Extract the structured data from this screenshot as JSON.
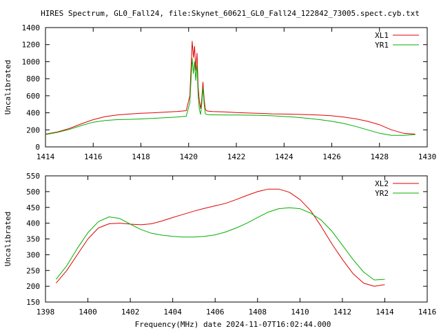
{
  "figure_title": "HIRES Spectrum, GL0_Fall24, file:Skynet_60621_GL0_Fall24_122842_73005.spect.cyb.txt",
  "footer_label": "Frequency(MHz) date 2024-11-07T16:02:44.000",
  "colors": {
    "red": "#e00000",
    "green": "#00b000"
  },
  "chart_data": [
    {
      "type": "line",
      "title": "HIRES Spectrum, GL0_Fall24, file:Skynet_60621_GL0_Fall24_122842_73005.spect.cyb.txt",
      "xlabel": "",
      "ylabel": "Uncalibrated",
      "xlim": [
        1414,
        1430
      ],
      "ylim": [
        0,
        1400
      ],
      "xticks": [
        1414,
        1416,
        1418,
        1420,
        1422,
        1424,
        1426,
        1428,
        1430
      ],
      "yticks": [
        0,
        200,
        400,
        600,
        800,
        1000,
        1200,
        1400
      ],
      "grid": false,
      "legend": "top-right",
      "series": [
        {
          "name": "XL1",
          "color": "#e00000",
          "x": [
            1414.0,
            1414.5,
            1415.0,
            1415.5,
            1416.0,
            1416.5,
            1417.0,
            1417.5,
            1418.0,
            1418.5,
            1419.0,
            1419.5,
            1419.9,
            1420.05,
            1420.15,
            1420.2,
            1420.25,
            1420.3,
            1420.35,
            1420.4,
            1420.45,
            1420.5,
            1420.55,
            1420.6,
            1420.65,
            1420.7,
            1420.75,
            1420.8,
            1421.0,
            1421.5,
            1422.0,
            1422.5,
            1423.0,
            1423.5,
            1424.0,
            1424.5,
            1425.0,
            1425.5,
            1426.0,
            1426.5,
            1427.0,
            1427.5,
            1428.0,
            1428.5,
            1429.0,
            1429.5
          ],
          "y": [
            150,
            175,
            215,
            270,
            320,
            355,
            375,
            385,
            395,
            400,
            408,
            415,
            425,
            600,
            1240,
            1050,
            1180,
            900,
            1100,
            700,
            540,
            450,
            560,
            760,
            560,
            440,
            425,
            420,
            415,
            410,
            403,
            397,
            393,
            388,
            385,
            382,
            378,
            373,
            365,
            350,
            330,
            300,
            260,
            200,
            160,
            150
          ]
        },
        {
          "name": "YR1",
          "color": "#00b000",
          "x": [
            1414.0,
            1414.5,
            1415.0,
            1415.5,
            1416.0,
            1416.5,
            1417.0,
            1417.5,
            1418.0,
            1418.5,
            1419.0,
            1419.5,
            1419.9,
            1420.05,
            1420.15,
            1420.2,
            1420.25,
            1420.3,
            1420.35,
            1420.4,
            1420.45,
            1420.5,
            1420.55,
            1420.6,
            1420.65,
            1420.7,
            1420.75,
            1420.8,
            1421.0,
            1421.5,
            1422.0,
            1422.5,
            1423.0,
            1423.5,
            1424.0,
            1424.5,
            1425.0,
            1425.5,
            1426.0,
            1426.5,
            1427.0,
            1427.5,
            1428.0,
            1428.5,
            1429.0,
            1429.5
          ],
          "y": [
            145,
            170,
            205,
            250,
            290,
            310,
            320,
            323,
            328,
            335,
            342,
            350,
            360,
            520,
            1040,
            860,
            1000,
            780,
            950,
            600,
            440,
            380,
            500,
            700,
            500,
            390,
            380,
            378,
            376,
            375,
            374,
            372,
            370,
            365,
            357,
            348,
            335,
            320,
            300,
            275,
            240,
            200,
            160,
            135,
            135,
            145
          ]
        }
      ]
    },
    {
      "type": "line",
      "title": "",
      "xlabel": "Frequency(MHz) date 2024-11-07T16:02:44.000",
      "ylabel": "Uncalibrated",
      "xlim": [
        1398,
        1416
      ],
      "ylim": [
        150,
        550
      ],
      "xticks": [
        1398,
        1400,
        1402,
        1404,
        1406,
        1408,
        1410,
        1412,
        1414,
        1416
      ],
      "yticks": [
        150,
        200,
        250,
        300,
        350,
        400,
        450,
        500,
        550
      ],
      "grid": false,
      "legend": "top-right",
      "series": [
        {
          "name": "XL2",
          "color": "#e00000",
          "x": [
            1398.5,
            1399.0,
            1399.5,
            1400.0,
            1400.5,
            1401.0,
            1401.5,
            1402.0,
            1402.5,
            1403.0,
            1403.5,
            1404.0,
            1404.5,
            1405.0,
            1405.5,
            1406.0,
            1406.5,
            1407.0,
            1407.5,
            1408.0,
            1408.5,
            1409.0,
            1409.5,
            1410.0,
            1410.5,
            1411.0,
            1411.5,
            1412.0,
            1412.5,
            1413.0,
            1413.5,
            1414.0
          ],
          "y": [
            210,
            250,
            300,
            350,
            385,
            398,
            400,
            397,
            395,
            398,
            407,
            418,
            428,
            438,
            447,
            455,
            463,
            475,
            488,
            500,
            508,
            508,
            498,
            475,
            440,
            390,
            335,
            285,
            240,
            210,
            200,
            205
          ]
        },
        {
          "name": "YR2",
          "color": "#00b000",
          "x": [
            1398.5,
            1399.0,
            1399.5,
            1400.0,
            1400.5,
            1401.0,
            1401.5,
            1402.0,
            1402.5,
            1403.0,
            1403.5,
            1404.0,
            1404.5,
            1405.0,
            1405.5,
            1406.0,
            1406.5,
            1407.0,
            1407.5,
            1408.0,
            1408.5,
            1409.0,
            1409.5,
            1410.0,
            1410.5,
            1411.0,
            1411.5,
            1412.0,
            1412.5,
            1413.0,
            1413.5,
            1414.0
          ],
          "y": [
            222,
            265,
            320,
            370,
            405,
            420,
            415,
            397,
            380,
            368,
            362,
            358,
            356,
            356,
            358,
            363,
            372,
            385,
            400,
            418,
            435,
            446,
            449,
            446,
            432,
            410,
            375,
            330,
            285,
            245,
            220,
            222
          ]
        }
      ]
    }
  ]
}
